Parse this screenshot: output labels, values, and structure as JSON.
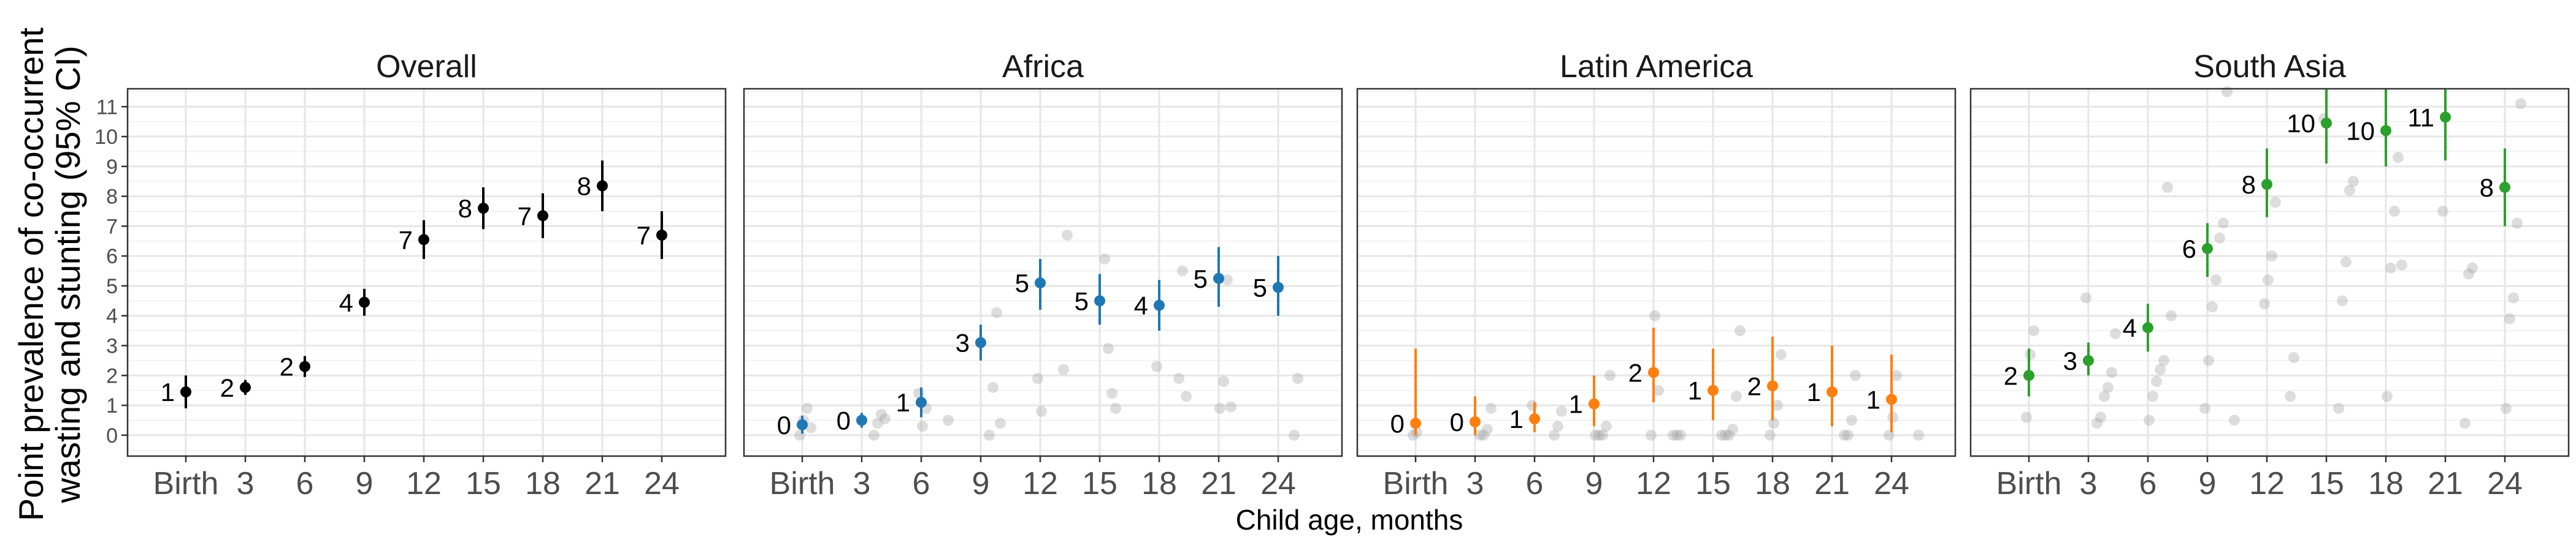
{
  "chart_data": {
    "type": "scatter",
    "ylabel": [
      "Point prevalence of co-occurrent",
      "wasting and stunting (95% CI)"
    ],
    "xlabel": "Child age, months",
    "x_ticks": [
      "Birth",
      "3",
      "6",
      "9",
      "12",
      "15",
      "18",
      "21",
      "24"
    ],
    "y_ticks": [
      0,
      1,
      2,
      3,
      4,
      5,
      6,
      7,
      8,
      9,
      10,
      11
    ],
    "ylim": [
      -0.7,
      11.6
    ],
    "grid": true,
    "facets": [
      {
        "title": "Overall",
        "color": "#000000",
        "estimates": [
          1.45,
          1.6,
          2.3,
          4.45,
          6.55,
          7.6,
          7.35,
          8.35,
          6.7
        ],
        "ci_lower": [
          0.9,
          1.35,
          1.95,
          4.0,
          5.9,
          6.9,
          6.6,
          7.5,
          5.9
        ],
        "ci_upper": [
          2.0,
          1.85,
          2.65,
          4.9,
          7.2,
          8.3,
          8.1,
          9.2,
          7.5
        ],
        "labels": [
          "1",
          "2",
          "2",
          "4",
          "7",
          "8",
          "7",
          "8",
          "7"
        ],
        "cohorts": []
      },
      {
        "title": "Africa",
        "color": "#1f77b4",
        "estimates": [
          0.35,
          0.5,
          1.1,
          3.1,
          5.1,
          4.5,
          4.35,
          5.25,
          4.95
        ],
        "ci_lower": [
          0.05,
          0.25,
          0.6,
          2.5,
          4.2,
          3.7,
          3.5,
          4.3,
          4.0
        ],
        "ci_upper": [
          0.65,
          0.75,
          1.6,
          3.7,
          5.9,
          5.4,
          5.2,
          6.3,
          6.0
        ],
        "labels": [
          "0",
          "0",
          "1",
          "3",
          "5",
          "5",
          "4",
          "5",
          "5"
        ],
        "cohorts": [
          [
            0,
            0.0
          ],
          [
            0,
            0.5
          ],
          [
            0,
            0.9
          ],
          [
            0,
            0.25
          ],
          [
            1,
            0.0
          ],
          [
            1,
            0.4
          ],
          [
            1,
            0.7
          ],
          [
            1,
            0.55
          ],
          [
            2,
            0.5
          ],
          [
            2,
            1.4
          ],
          [
            2,
            0.3
          ],
          [
            2,
            0.9
          ],
          [
            3,
            0.0
          ],
          [
            3,
            1.6
          ],
          [
            3,
            4.1
          ],
          [
            3,
            0.4
          ],
          [
            4,
            2.2
          ],
          [
            4,
            6.7
          ],
          [
            4,
            1.9
          ],
          [
            4,
            0.8
          ],
          [
            5,
            5.9
          ],
          [
            5,
            2.9
          ],
          [
            5,
            1.4
          ],
          [
            5,
            0.9
          ],
          [
            6,
            1.9
          ],
          [
            6,
            5.5
          ],
          [
            6,
            1.3
          ],
          [
            6,
            2.3
          ],
          [
            7,
            0.9
          ],
          [
            7,
            1.8
          ],
          [
            7,
            5.2
          ],
          [
            7,
            0.95
          ],
          [
            8,
            0.0
          ],
          [
            8,
            1.9
          ]
        ]
      },
      {
        "title": "Latin America",
        "color": "#ff7f0e",
        "estimates": [
          0.4,
          0.45,
          0.55,
          1.05,
          2.1,
          1.5,
          1.65,
          1.45,
          1.2
        ],
        "ci_lower": [
          0.0,
          0.0,
          0.1,
          0.3,
          1.1,
          0.5,
          0.5,
          0.3,
          0.1
        ],
        "ci_upper": [
          2.9,
          1.3,
          1.1,
          2.0,
          3.6,
          2.9,
          3.3,
          3.0,
          2.7
        ],
        "labels": [
          "0",
          "0",
          "1",
          "1",
          "2",
          "1",
          "2",
          "1",
          "1"
        ],
        "cohorts": [
          [
            0,
            0.0
          ],
          [
            0,
            0.1
          ],
          [
            1,
            0.0
          ],
          [
            1,
            0.0
          ],
          [
            1,
            0.2
          ],
          [
            1,
            0.9
          ],
          [
            2,
            0.0
          ],
          [
            2,
            0.3
          ],
          [
            2,
            0.8
          ],
          [
            2,
            1.0
          ],
          [
            3,
            0.0
          ],
          [
            3,
            0.0
          ],
          [
            3,
            0.0
          ],
          [
            3,
            0.3
          ],
          [
            3,
            2.0
          ],
          [
            4,
            0.0
          ],
          [
            4,
            0.0
          ],
          [
            4,
            0.0
          ],
          [
            4,
            0.0
          ],
          [
            4,
            4.0
          ],
          [
            4,
            1.5
          ],
          [
            5,
            0.0
          ],
          [
            5,
            0.0
          ],
          [
            5,
            0.0
          ],
          [
            5,
            0.2
          ],
          [
            5,
            1.3
          ],
          [
            5,
            3.5
          ],
          [
            6,
            0.0
          ],
          [
            6,
            0.4
          ],
          [
            6,
            1.0
          ],
          [
            6,
            2.7
          ],
          [
            7,
            0.0
          ],
          [
            7,
            0.0
          ],
          [
            7,
            0.5
          ],
          [
            7,
            2.0
          ],
          [
            8,
            0.0
          ],
          [
            8,
            0.0
          ],
          [
            8,
            0.6
          ],
          [
            8,
            2.0
          ]
        ]
      },
      {
        "title": "South Asia",
        "color": "#2ca02c",
        "estimates": [
          2.0,
          2.5,
          3.6,
          6.25,
          8.4,
          10.45,
          10.2,
          10.65,
          8.3
        ],
        "ci_lower": [
          1.3,
          2.0,
          2.8,
          5.3,
          7.3,
          9.1,
          9.0,
          9.2,
          7.0
        ],
        "ci_upper": [
          2.9,
          3.1,
          4.4,
          7.1,
          9.6,
          11.6,
          11.6,
          11.6,
          9.6
        ],
        "labels": [
          "2",
          "3",
          "4",
          "6",
          "8",
          "10",
          "10",
          "11",
          "8"
        ],
        "cohorts": [
          [
            0,
            0.6
          ],
          [
            0,
            2.7
          ],
          [
            0,
            3.5
          ],
          [
            1,
            0.4
          ],
          [
            1,
            0.6
          ],
          [
            1,
            1.3
          ],
          [
            1,
            1.6
          ],
          [
            1,
            2.1
          ],
          [
            1,
            3.4
          ],
          [
            1,
            4.6
          ],
          [
            2,
            0.5
          ],
          [
            2,
            1.3
          ],
          [
            2,
            1.8
          ],
          [
            2,
            2.2
          ],
          [
            2,
            2.5
          ],
          [
            2,
            8.3
          ],
          [
            2,
            4.0
          ],
          [
            3,
            0.5
          ],
          [
            3,
            0.9
          ],
          [
            3,
            2.5
          ],
          [
            3,
            4.3
          ],
          [
            3,
            5.2
          ],
          [
            3,
            6.6
          ],
          [
            3,
            7.1
          ],
          [
            3,
            11.5
          ],
          [
            4,
            1.3
          ],
          [
            4,
            2.6
          ],
          [
            4,
            4.4
          ],
          [
            4,
            5.2
          ],
          [
            4,
            6.0
          ],
          [
            4,
            7.8
          ],
          [
            5,
            0.9
          ],
          [
            5,
            4.5
          ],
          [
            5,
            5.8
          ],
          [
            5,
            8.2
          ],
          [
            5,
            8.5
          ],
          [
            5,
            10.6
          ],
          [
            6,
            1.3
          ],
          [
            6,
            5.6
          ],
          [
            6,
            7.5
          ],
          [
            6,
            9.3
          ],
          [
            6,
            5.7
          ],
          [
            7,
            0.4
          ],
          [
            7,
            5.4
          ],
          [
            7,
            5.6
          ],
          [
            7,
            7.5
          ],
          [
            8,
            0.9
          ],
          [
            8,
            3.9
          ],
          [
            8,
            4.6
          ],
          [
            8,
            7.1
          ],
          [
            8,
            11.1
          ]
        ]
      }
    ]
  }
}
